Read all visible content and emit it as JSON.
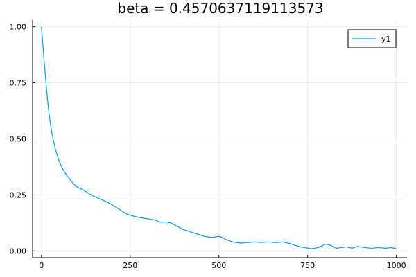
{
  "chart_data": {
    "type": "line",
    "title": "beta = 0.4570637119113573",
    "xlabel": "",
    "ylabel": "",
    "xlim": [
      -25,
      1030
    ],
    "ylim": [
      -0.03,
      1.03
    ],
    "x_ticks": [
      0,
      250,
      500,
      750,
      1000
    ],
    "x_tick_labels": [
      "0",
      "250",
      "500",
      "750",
      "1000"
    ],
    "y_ticks": [
      0.0,
      0.25,
      0.5,
      0.75,
      1.0
    ],
    "y_tick_labels": [
      "0.00",
      "0.25",
      "0.50",
      "0.75",
      "1.00"
    ],
    "grid": true,
    "legend_position": "top-right",
    "series": [
      {
        "name": "y1",
        "color": "#009af9",
        "points": [
          [
            0,
            1.0
          ],
          [
            5,
            0.9
          ],
          [
            10,
            0.8
          ],
          [
            15,
            0.71
          ],
          [
            20,
            0.63
          ],
          [
            25,
            0.57
          ],
          [
            30,
            0.52
          ],
          [
            40,
            0.45
          ],
          [
            50,
            0.4
          ],
          [
            60,
            0.365
          ],
          [
            70,
            0.34
          ],
          [
            80,
            0.32
          ],
          [
            90,
            0.3
          ],
          [
            100,
            0.285
          ],
          [
            120,
            0.27
          ],
          [
            140,
            0.25
          ],
          [
            160,
            0.235
          ],
          [
            180,
            0.222
          ],
          [
            200,
            0.205
          ],
          [
            220,
            0.185
          ],
          [
            240,
            0.165
          ],
          [
            260,
            0.155
          ],
          [
            280,
            0.148
          ],
          [
            300,
            0.143
          ],
          [
            320,
            0.138
          ],
          [
            335,
            0.128
          ],
          [
            350,
            0.129
          ],
          [
            365,
            0.125
          ],
          [
            380,
            0.112
          ],
          [
            400,
            0.095
          ],
          [
            420,
            0.085
          ],
          [
            440,
            0.075
          ],
          [
            460,
            0.065
          ],
          [
            480,
            0.06
          ],
          [
            500,
            0.065
          ],
          [
            510,
            0.06
          ],
          [
            520,
            0.05
          ],
          [
            540,
            0.04
          ],
          [
            560,
            0.035
          ],
          [
            580,
            0.037
          ],
          [
            600,
            0.04
          ],
          [
            620,
            0.038
          ],
          [
            640,
            0.04
          ],
          [
            660,
            0.037
          ],
          [
            680,
            0.04
          ],
          [
            700,
            0.033
          ],
          [
            720,
            0.022
          ],
          [
            740,
            0.015
          ],
          [
            760,
            0.01
          ],
          [
            780,
            0.015
          ],
          [
            800,
            0.03
          ],
          [
            815,
            0.025
          ],
          [
            830,
            0.012
          ],
          [
            845,
            0.015
          ],
          [
            860,
            0.018
          ],
          [
            875,
            0.012
          ],
          [
            890,
            0.02
          ],
          [
            910,
            0.015
          ],
          [
            930,
            0.012
          ],
          [
            950,
            0.015
          ],
          [
            970,
            0.012
          ],
          [
            985,
            0.015
          ],
          [
            1000,
            0.01
          ]
        ]
      }
    ]
  }
}
